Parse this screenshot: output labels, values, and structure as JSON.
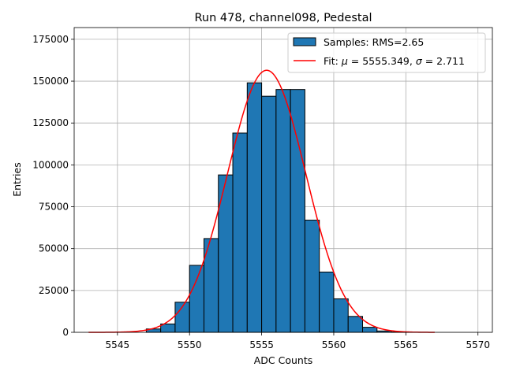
{
  "chart_data": {
    "type": "bar",
    "title": "Run 478, channel098, Pedestal",
    "xlabel": "ADC Counts",
    "ylabel": "Entries",
    "xlim": [
      5542,
      5571
    ],
    "ylim": [
      0,
      182000
    ],
    "grid": true,
    "xticks": [
      5545,
      5550,
      5555,
      5560,
      5565,
      5570
    ],
    "xtick_labels": [
      "5545",
      "5550",
      "5555",
      "5560",
      "5565",
      "5570"
    ],
    "yticks": [
      0,
      25000,
      50000,
      75000,
      100000,
      125000,
      150000,
      175000
    ],
    "ytick_labels": [
      "0",
      "25000",
      "50000",
      "75000",
      "100000",
      "125000",
      "150000",
      "175000"
    ],
    "bin_width": 1,
    "bins": [
      5543,
      5544,
      5545,
      5546,
      5547,
      5548,
      5549,
      5550,
      5551,
      5552,
      5553,
      5554,
      5555,
      5556,
      5557,
      5558,
      5559,
      5560,
      5561,
      5562,
      5563,
      5564,
      5565,
      5566
    ],
    "values": [
      0,
      0,
      0,
      0,
      2000,
      5000,
      18000,
      40000,
      56000,
      94000,
      119000,
      149000,
      141000,
      145000,
      145000,
      67000,
      36000,
      20000,
      9500,
      3000,
      800,
      200,
      50,
      0
    ],
    "bar_color": "#1f77b4",
    "fit": {
      "mu": 5555.349,
      "sigma": 2.711,
      "amplitude": 156500,
      "x_range": [
        5543,
        5567
      ],
      "color": "#ff0000"
    },
    "legend": {
      "position": "top-right",
      "entries": [
        {
          "kind": "patch",
          "label": "Samples: RMS=2.65",
          "color": "#1f77b4"
        },
        {
          "kind": "line",
          "label_prefix": "Fit: ",
          "mu_symbol": "μ",
          "mu_text": " = 5555.349, ",
          "sigma_symbol": "σ",
          "sigma_text": " = 2.711",
          "color": "#ff0000"
        }
      ]
    }
  }
}
